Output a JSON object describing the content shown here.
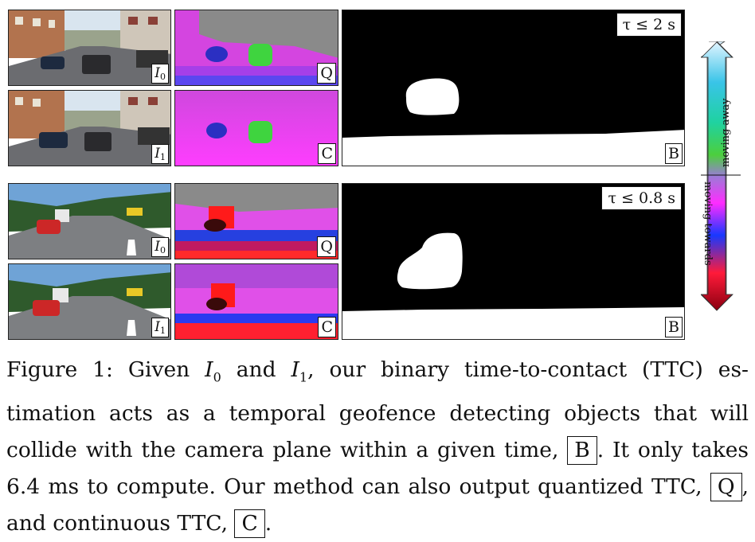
{
  "figure": {
    "labels": {
      "i0": "I",
      "i0_sub": "0",
      "i1": "I",
      "i1_sub": "1",
      "q": "Q",
      "c": "C",
      "b": "B"
    },
    "rows": [
      {
        "tau_label": "τ ≤ 2 s"
      },
      {
        "tau_label": "τ ≤ 0.8 s"
      }
    ],
    "colorbar": {
      "top_label": "moving away",
      "bottom_label": "moving towards",
      "colors": [
        "#e0f4ff",
        "#39c4e8",
        "#1fd2a0",
        "#4ccf3d",
        "#9b7bd6",
        "#ff2cff",
        "#1838ff",
        "#ff1a3a",
        "#8a0010"
      ]
    }
  },
  "caption": {
    "p1": "Figure 1: Given ",
    "i0": "I",
    "i0_sub": "0",
    "p2": " and ",
    "i1": "I",
    "i1_sub": "1",
    "p3": ", our binary time-to-contact (TTC) es-timation acts as a temporal geofence detecting objects that will collide with the camera plane within a given time, ",
    "box_b": "B",
    "p4": ". It only takes 6.4 ms to compute. Our method can also output quantized TTC, ",
    "box_q": "Q",
    "p5": ", and continuous TTC, ",
    "box_c": "C",
    "p6": "."
  }
}
